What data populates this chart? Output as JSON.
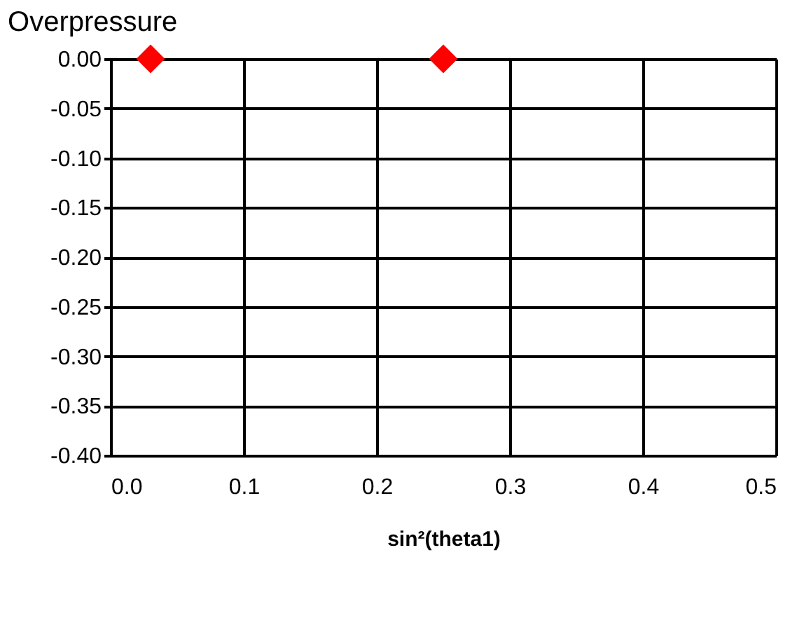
{
  "chart_data": {
    "type": "scatter",
    "title": "Overpressure",
    "xlabel": "sin²(theta1)",
    "x": [
      0.03,
      0.25
    ],
    "series": [
      {
        "color": "#ff0000",
        "values": [
          0.0,
          0.0
        ]
      }
    ],
    "xlim": [
      0,
      0.5
    ],
    "xticks": [
      {
        "value": 0,
        "label": "0.0"
      },
      {
        "value": 0.1,
        "label": "0.1"
      },
      {
        "value": 0.2,
        "label": "0.2"
      },
      {
        "value": 0.3,
        "label": "0.3"
      },
      {
        "value": 0.4,
        "label": "0.4"
      },
      {
        "value": 0.5,
        "label": "0.5"
      }
    ],
    "ylim": [
      -0.4,
      0
    ],
    "yticks": [
      {
        "value": -0.4,
        "label": "-0.40"
      },
      {
        "value": -0.35,
        "label": "-0.35"
      },
      {
        "value": -0.3,
        "label": "-0.30"
      },
      {
        "value": -0.25,
        "label": "-0.25"
      },
      {
        "value": -0.2,
        "label": "-0.20"
      },
      {
        "value": -0.15,
        "label": "-0.15"
      },
      {
        "value": -0.1,
        "label": "-0.10"
      },
      {
        "value": -0.05,
        "label": "-0.05"
      },
      {
        "value": 0,
        "label": "0.00"
      }
    ],
    "grid": true,
    "marker": "diamond",
    "legend": false
  }
}
